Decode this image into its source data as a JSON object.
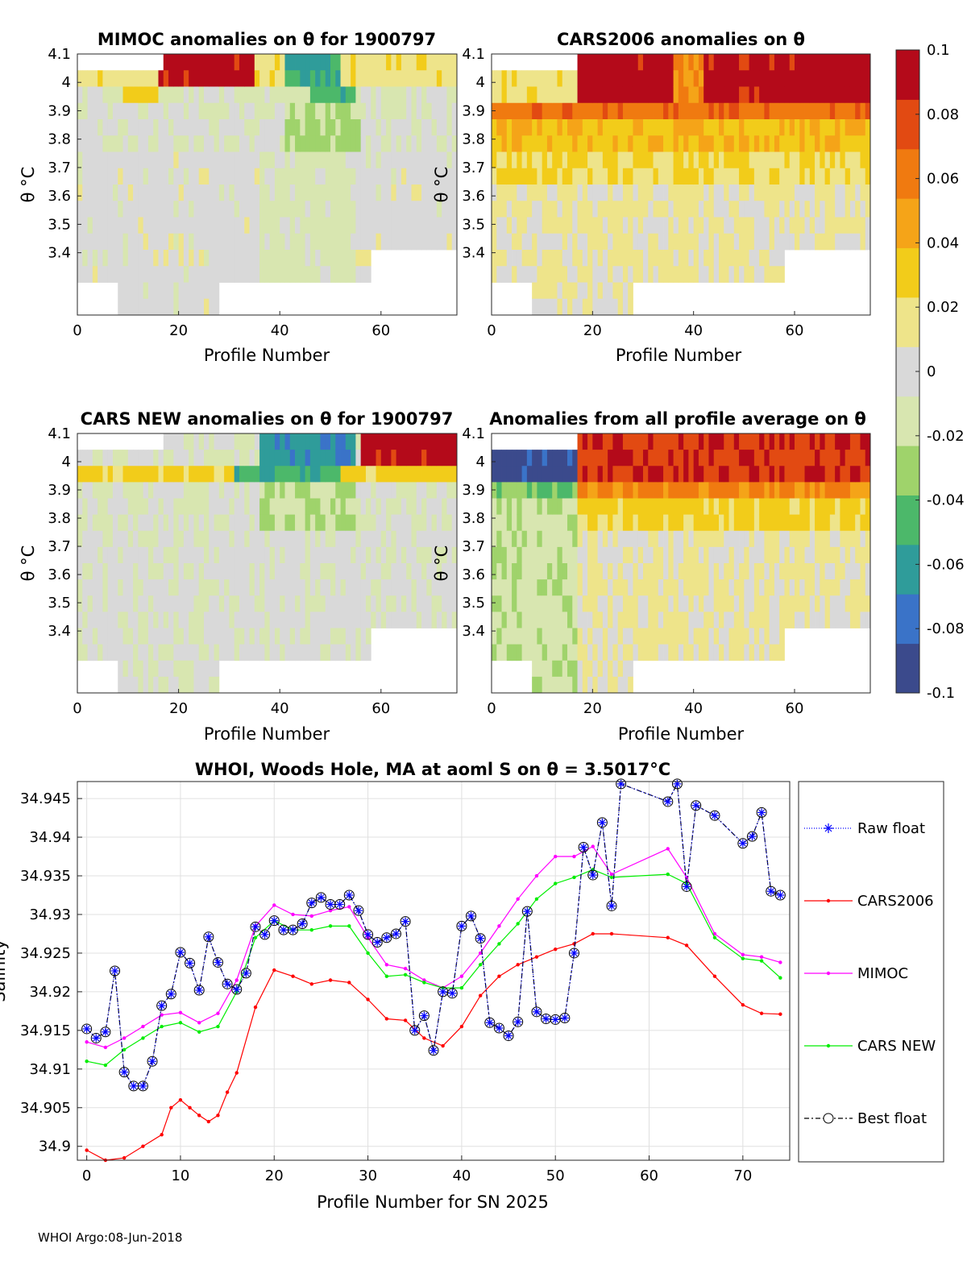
{
  "colorbar": {
    "ticks": [
      "0.1",
      "0.08",
      "0.06",
      "0.04",
      "0.02",
      "0",
      "-0.02",
      "-0.04",
      "-0.06",
      "-0.08",
      "-0.1"
    ],
    "colors": [
      "#3b4a8c",
      "#3a73c8",
      "#2f9c9a",
      "#4cb86a",
      "#9fd36b",
      "#d8e6b0",
      "#d9d9d9",
      "#eee48a",
      "#f2cc1a",
      "#f5a418",
      "#f07a10",
      "#e24a12",
      "#b40a1a"
    ]
  },
  "panels": [
    {
      "title": "MIMOC anomalies on θ  for 1900797",
      "ylabel": "θ °C",
      "xlabel": "Profile Number",
      "xticks": [
        "0",
        "20",
        "40",
        "60"
      ],
      "yticks": [
        "4.1",
        "4",
        "3.9",
        "3.8",
        "3.7",
        "3.6",
        "3.5",
        "3.4"
      ]
    },
    {
      "title": "CARS2006 anomalies on θ",
      "ylabel": "θ °C",
      "xlabel": "Profile Number",
      "xticks": [
        "0",
        "20",
        "40",
        "60"
      ],
      "yticks": [
        "4.1",
        "4",
        "3.9",
        "3.8",
        "3.7",
        "3.6",
        "3.5",
        "3.4"
      ]
    },
    {
      "title": "CARS NEW anomalies on θ for 1900797",
      "ylabel": "θ °C",
      "xlabel": "Profile Number",
      "xticks": [
        "0",
        "20",
        "40",
        "60"
      ],
      "yticks": [
        "4.1",
        "4",
        "3.9",
        "3.8",
        "3.7",
        "3.6",
        "3.5",
        "3.4"
      ]
    },
    {
      "title": "Anomalies from all profile average on θ",
      "ylabel": "θ °C",
      "xlabel": "Profile Number",
      "xticks": [
        "0",
        "20",
        "40",
        "60"
      ],
      "yticks": [
        "4.1",
        "4",
        "3.9",
        "3.8",
        "3.7",
        "3.6",
        "3.5",
        "3.4"
      ]
    }
  ],
  "chart_data": {
    "type": "line",
    "title": "WHOI, Woods Hole, MA at aoml S on θ = 3.5017°C",
    "xlabel": "Profile Number for SN 2025",
    "ylabel": "Salinity",
    "xlim": [
      -1,
      75
    ],
    "ylim": [
      34.8982,
      34.9472
    ],
    "xticks": [
      0,
      10,
      20,
      30,
      40,
      50,
      60,
      70
    ],
    "yticks": [
      34.9,
      34.905,
      34.91,
      34.915,
      34.92,
      34.925,
      34.93,
      34.935,
      34.94,
      34.945
    ],
    "ytick_labels": [
      "34.9",
      "34.905",
      "34.91",
      "34.915",
      "34.92",
      "34.925",
      "34.93",
      "34.935",
      "34.94",
      "34.945"
    ],
    "grid": true,
    "legend": [
      "Raw float",
      "CARS2006",
      "MIMOC",
      "CARS NEW",
      "Best float"
    ],
    "series": [
      {
        "name": "CARS2006",
        "color": "#ff0000",
        "x": [
          0,
          2,
          4,
          6,
          8,
          9,
          10,
          11,
          12,
          13,
          14,
          15,
          16,
          18,
          20,
          22,
          24,
          26,
          28,
          30,
          32,
          34,
          36,
          38,
          40,
          42,
          44,
          46,
          48,
          50,
          52,
          54,
          56,
          62,
          64,
          67,
          70,
          72,
          74
        ],
        "values": [
          34.8995,
          34.8982,
          34.8985,
          34.9,
          34.9015,
          34.905,
          34.906,
          34.905,
          34.904,
          34.9032,
          34.904,
          34.907,
          34.9095,
          34.918,
          34.9228,
          34.922,
          34.921,
          34.9215,
          34.9212,
          34.919,
          34.9165,
          34.9163,
          34.914,
          34.913,
          34.9155,
          34.9195,
          34.922,
          34.9235,
          34.9245,
          34.9255,
          34.9262,
          34.9275,
          34.9275,
          34.927,
          34.926,
          34.922,
          34.9183,
          34.9172,
          34.9171
        ]
      },
      {
        "name": "MIMOC",
        "color": "#ff00ff",
        "x": [
          0,
          2,
          4,
          6,
          8,
          10,
          12,
          14,
          16,
          18,
          20,
          22,
          24,
          26,
          28,
          30,
          32,
          34,
          36,
          38,
          40,
          42,
          44,
          46,
          48,
          50,
          52,
          54,
          56,
          62,
          64,
          67,
          70,
          72,
          74
        ],
        "values": [
          34.9135,
          34.9128,
          34.914,
          34.9155,
          34.917,
          34.9173,
          34.916,
          34.9172,
          34.9215,
          34.9285,
          34.9312,
          34.93,
          34.9298,
          34.9305,
          34.931,
          34.927,
          34.9235,
          34.923,
          34.9215,
          34.9205,
          34.922,
          34.925,
          34.9285,
          34.932,
          34.935,
          34.9375,
          34.9375,
          34.9388,
          34.9352,
          34.9385,
          34.9348,
          34.9275,
          34.9248,
          34.9245,
          34.9238
        ]
      },
      {
        "name": "CARS NEW",
        "color": "#00ee00",
        "x": [
          0,
          2,
          4,
          6,
          8,
          10,
          12,
          14,
          16,
          18,
          20,
          22,
          24,
          26,
          28,
          30,
          32,
          34,
          36,
          38,
          40,
          42,
          44,
          46,
          48,
          50,
          52,
          54,
          56,
          62,
          64,
          67,
          70,
          72,
          74
        ],
        "values": [
          34.911,
          34.9105,
          34.9125,
          34.914,
          34.9155,
          34.916,
          34.9148,
          34.9155,
          34.92,
          34.927,
          34.9292,
          34.928,
          34.928,
          34.9285,
          34.9285,
          34.925,
          34.922,
          34.9222,
          34.9212,
          34.9205,
          34.9205,
          34.9235,
          34.9262,
          34.9288,
          34.932,
          34.934,
          34.9348,
          34.9358,
          34.9348,
          34.9352,
          34.934,
          34.927,
          34.9243,
          34.924,
          34.9218
        ]
      },
      {
        "name": "Raw float",
        "color": "#0000ff",
        "x": [
          0,
          1,
          2,
          3,
          4,
          5,
          6,
          7,
          8,
          9,
          10,
          11,
          12,
          13,
          14,
          15,
          16,
          17,
          18,
          19,
          20,
          21,
          22,
          23,
          24,
          25,
          26,
          27,
          28,
          29,
          30,
          31,
          32,
          33,
          34,
          35,
          36,
          37,
          38,
          39,
          40,
          41,
          42,
          43,
          44,
          45,
          46,
          47,
          48,
          49,
          50,
          51,
          52,
          53,
          54,
          55,
          56,
          57,
          62,
          63,
          64,
          65,
          67,
          70,
          71,
          72,
          73,
          74
        ],
        "values": [
          34.9152,
          34.914,
          34.9148,
          34.9227,
          34.9096,
          34.9078,
          34.9078,
          34.911,
          34.9182,
          34.9197,
          34.9251,
          34.9237,
          34.9202,
          34.9271,
          34.9238,
          34.921,
          34.9203,
          34.9224,
          34.9284,
          34.9274,
          34.9292,
          34.928,
          34.928,
          34.9288,
          34.9315,
          34.9322,
          34.9313,
          34.9313,
          34.9325,
          34.9305,
          34.9274,
          34.9264,
          34.927,
          34.9275,
          34.9291,
          34.915,
          34.9169,
          34.9124,
          34.92,
          34.9198,
          34.9285,
          34.9298,
          34.9269,
          34.916,
          34.9153,
          34.9143,
          34.9161,
          34.9304,
          34.9174,
          34.9165,
          34.9164,
          34.9166,
          34.925,
          34.9387,
          34.9351,
          34.9419,
          34.9311,
          34.9469,
          34.9446,
          34.9469,
          34.9336,
          34.9441,
          34.9428,
          34.9392,
          34.9401,
          34.9432,
          34.933,
          34.9325
        ]
      },
      {
        "name": "Best float",
        "color": "#000000",
        "x": [
          0,
          1,
          2,
          3,
          4,
          5,
          6,
          7,
          8,
          9,
          10,
          11,
          12,
          13,
          14,
          15,
          16,
          17,
          18,
          19,
          20,
          21,
          22,
          23,
          24,
          25,
          26,
          27,
          28,
          29,
          30,
          31,
          32,
          33,
          34,
          35,
          36,
          37,
          38,
          39,
          40,
          41,
          42,
          43,
          44,
          45,
          46,
          47,
          48,
          49,
          50,
          51,
          52,
          53,
          54,
          55,
          56,
          57,
          62,
          63,
          64,
          65,
          67,
          70,
          71,
          72,
          73,
          74
        ],
        "values": [
          34.9152,
          34.914,
          34.9148,
          34.9227,
          34.9096,
          34.9078,
          34.9078,
          34.911,
          34.9182,
          34.9197,
          34.9251,
          34.9237,
          34.9202,
          34.9271,
          34.9238,
          34.921,
          34.9203,
          34.9224,
          34.9284,
          34.9274,
          34.9292,
          34.928,
          34.928,
          34.9288,
          34.9315,
          34.9322,
          34.9313,
          34.9313,
          34.9325,
          34.9305,
          34.9274,
          34.9264,
          34.927,
          34.9275,
          34.9291,
          34.915,
          34.9169,
          34.9124,
          34.92,
          34.9198,
          34.9285,
          34.9298,
          34.9269,
          34.916,
          34.9153,
          34.9143,
          34.9161,
          34.9304,
          34.9174,
          34.9165,
          34.9164,
          34.9166,
          34.925,
          34.9387,
          34.9351,
          34.9419,
          34.9311,
          34.9469,
          34.9446,
          34.9469,
          34.9336,
          34.9441,
          34.9428,
          34.9392,
          34.9401,
          34.9432,
          34.933,
          34.9325
        ]
      }
    ]
  },
  "footer": "WHOI Argo:08-Jun-2018"
}
